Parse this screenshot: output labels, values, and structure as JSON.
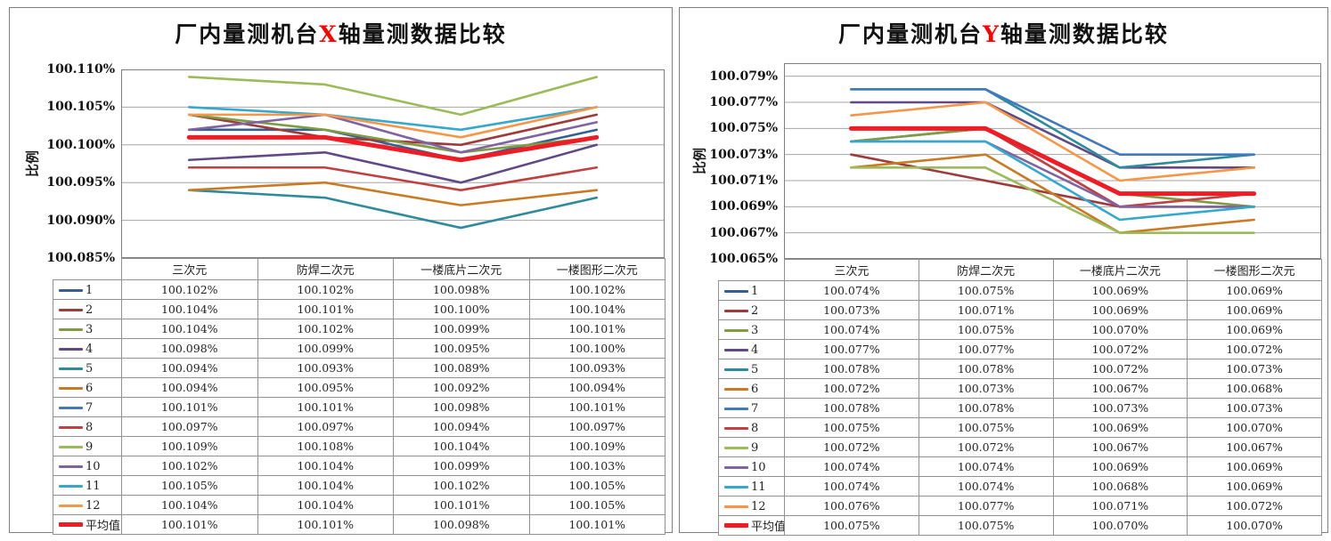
{
  "chart_data": [
    {
      "type": "line",
      "title": "厂内量测机台X轴量测数据比较",
      "title_parts": [
        "厂内量测机台",
        "X",
        "轴量测数据比较"
      ],
      "axis_letter_color": "#ff0000",
      "ylabel": "比例",
      "categories": [
        "三次元",
        "防焊二次元",
        "一楼底片二次元",
        "一楼图形二次元"
      ],
      "ylim": [
        100.085,
        100.11
      ],
      "grid": true,
      "legend_position": "table-left-column",
      "y_ticks": [
        {
          "label": "100.110%",
          "value": 100.11
        },
        {
          "label": "100.105%",
          "value": 100.105
        },
        {
          "label": "100.100%",
          "value": 100.1
        },
        {
          "label": "100.095%",
          "value": 100.095
        },
        {
          "label": "100.090%",
          "value": 100.09
        },
        {
          "label": "100.085%",
          "value": 100.085
        }
      ],
      "series": [
        {
          "name": "1",
          "color": "#365F91",
          "emphasis": false,
          "values": [
            100.102,
            100.102,
            100.098,
            100.102
          ]
        },
        {
          "name": "2",
          "color": "#9E3B3B",
          "emphasis": false,
          "values": [
            100.104,
            100.101,
            100.1,
            100.104
          ]
        },
        {
          "name": "3",
          "color": "#7E9C42",
          "emphasis": false,
          "values": [
            100.104,
            100.102,
            100.099,
            100.101
          ]
        },
        {
          "name": "4",
          "color": "#5F4A87",
          "emphasis": false,
          "values": [
            100.098,
            100.099,
            100.095,
            100.1
          ]
        },
        {
          "name": "5",
          "color": "#2E8B9C",
          "emphasis": false,
          "values": [
            100.094,
            100.093,
            100.089,
            100.093
          ]
        },
        {
          "name": "6",
          "color": "#CB7A24",
          "emphasis": false,
          "values": [
            100.094,
            100.095,
            100.092,
            100.094
          ]
        },
        {
          "name": "7",
          "color": "#4179BD",
          "emphasis": false,
          "values": [
            100.101,
            100.101,
            100.098,
            100.101
          ]
        },
        {
          "name": "8",
          "color": "#C2403F",
          "emphasis": false,
          "values": [
            100.097,
            100.097,
            100.094,
            100.097
          ]
        },
        {
          "name": "9",
          "color": "#9BBB59",
          "emphasis": false,
          "values": [
            100.109,
            100.108,
            100.104,
            100.109
          ]
        },
        {
          "name": "10",
          "color": "#8064A2",
          "emphasis": false,
          "values": [
            100.102,
            100.104,
            100.099,
            100.103
          ]
        },
        {
          "name": "11",
          "color": "#35A8CE",
          "emphasis": false,
          "values": [
            100.105,
            100.104,
            100.102,
            100.105
          ]
        },
        {
          "name": "12",
          "color": "#F79646",
          "emphasis": false,
          "values": [
            100.104,
            100.104,
            100.101,
            100.105
          ]
        },
        {
          "name": "平均值",
          "color": "#EE1C25",
          "emphasis": true,
          "values": [
            100.101,
            100.101,
            100.098,
            100.101
          ]
        }
      ]
    },
    {
      "type": "line",
      "title": "厂内量测机台Y轴量测数据比较",
      "title_parts": [
        "厂内量测机台",
        "Y",
        "轴量测数据比较"
      ],
      "axis_letter_color": "#ff0000",
      "ylabel": "比例",
      "categories": [
        "三次元",
        "防焊二次元",
        "一楼底片二次元",
        "一楼图形二次元"
      ],
      "ylim": [
        100.065,
        100.08
      ],
      "grid": true,
      "legend_position": "table-left-column",
      "y_ticks": [
        {
          "label": "100.079%",
          "value": 100.079
        },
        {
          "label": "100.077%",
          "value": 100.077
        },
        {
          "label": "100.075%",
          "value": 100.075
        },
        {
          "label": "100.073%",
          "value": 100.073
        },
        {
          "label": "100.071%",
          "value": 100.071
        },
        {
          "label": "100.069%",
          "value": 100.069
        },
        {
          "label": "100.067%",
          "value": 100.067
        },
        {
          "label": "100.065%",
          "value": 100.065
        }
      ],
      "series": [
        {
          "name": "1",
          "color": "#365F91",
          "emphasis": false,
          "values": [
            100.074,
            100.075,
            100.069,
            100.069
          ]
        },
        {
          "name": "2",
          "color": "#9E3B3B",
          "emphasis": false,
          "values": [
            100.073,
            100.071,
            100.069,
            100.069
          ]
        },
        {
          "name": "3",
          "color": "#7E9C42",
          "emphasis": false,
          "values": [
            100.074,
            100.075,
            100.07,
            100.069
          ]
        },
        {
          "name": "4",
          "color": "#5F4A87",
          "emphasis": false,
          "values": [
            100.077,
            100.077,
            100.072,
            100.072
          ]
        },
        {
          "name": "5",
          "color": "#2E8B9C",
          "emphasis": false,
          "values": [
            100.078,
            100.078,
            100.072,
            100.073
          ]
        },
        {
          "name": "6",
          "color": "#CB7A24",
          "emphasis": false,
          "values": [
            100.072,
            100.073,
            100.067,
            100.068
          ]
        },
        {
          "name": "7",
          "color": "#4179BD",
          "emphasis": false,
          "values": [
            100.078,
            100.078,
            100.073,
            100.073
          ]
        },
        {
          "name": "8",
          "color": "#C2403F",
          "emphasis": false,
          "values": [
            100.075,
            100.075,
            100.069,
            100.07
          ]
        },
        {
          "name": "9",
          "color": "#9BBB59",
          "emphasis": false,
          "values": [
            100.072,
            100.072,
            100.067,
            100.067
          ]
        },
        {
          "name": "10",
          "color": "#8064A2",
          "emphasis": false,
          "values": [
            100.074,
            100.074,
            100.069,
            100.069
          ]
        },
        {
          "name": "11",
          "color": "#35A8CE",
          "emphasis": false,
          "values": [
            100.074,
            100.074,
            100.068,
            100.069
          ]
        },
        {
          "name": "12",
          "color": "#F79646",
          "emphasis": false,
          "values": [
            100.076,
            100.077,
            100.071,
            100.072
          ]
        },
        {
          "name": "平均值",
          "color": "#EE1C25",
          "emphasis": true,
          "values": [
            100.075,
            100.075,
            100.07,
            100.07
          ]
        }
      ]
    }
  ]
}
